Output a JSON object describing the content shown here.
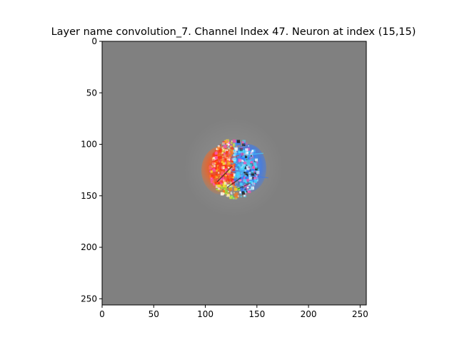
{
  "figure": {
    "title": "Layer name convolution_7. Channel Index 47. Neuron at index (15,15)"
  },
  "image_panel": {
    "background_color": "#808080",
    "image_size": 256,
    "x_ticks": [
      0,
      50,
      100,
      150,
      200,
      250
    ],
    "y_ticks": [
      0,
      50,
      100,
      150,
      200,
      250
    ],
    "blob_center": [
      128,
      124
    ],
    "colors": {
      "red": "#ff2a10",
      "orange": "#ff7a1a",
      "yellow": "#f6e12a",
      "green": "#84ff3a",
      "magenta": "#ff4fb0",
      "cyan": "#46d9ff",
      "blue": "#2f78ff",
      "white": "#ffffff",
      "dark": "#202020"
    }
  }
}
